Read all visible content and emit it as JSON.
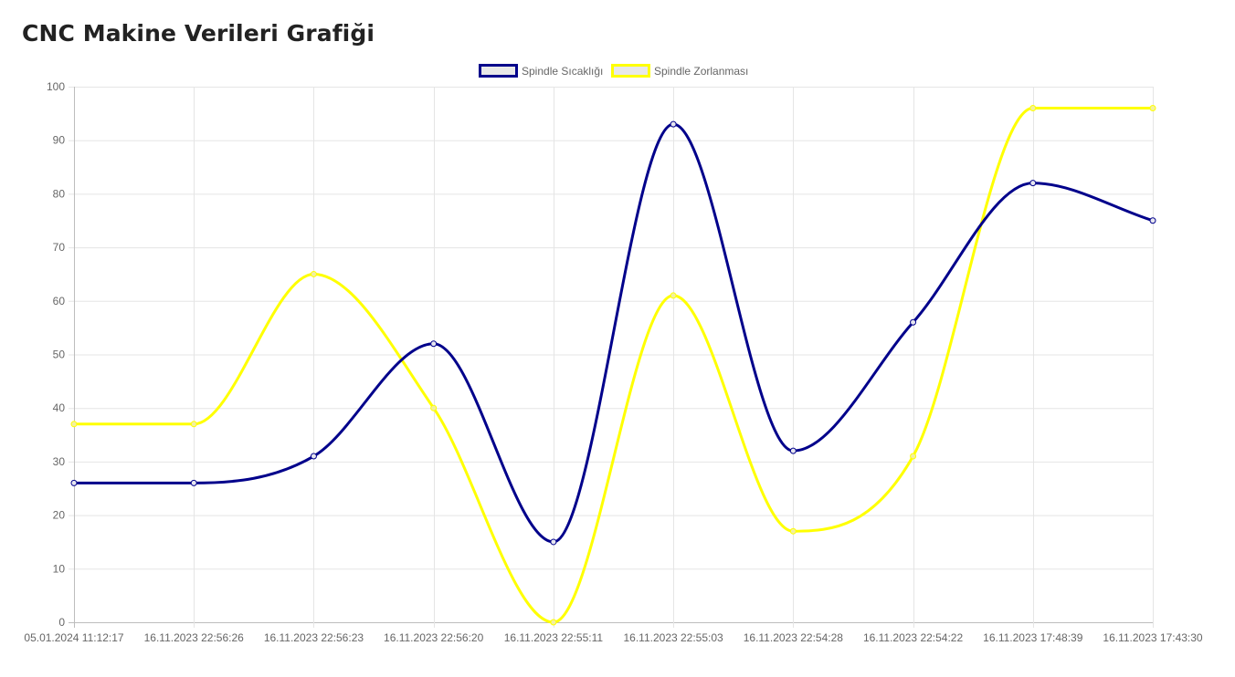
{
  "page_title": "CNC Makine Verileri Grafiği",
  "chart_data": {
    "type": "line",
    "title": "",
    "xlabel": "",
    "ylabel": "",
    "ylim": [
      0,
      100
    ],
    "yticks": [
      0,
      10,
      20,
      30,
      40,
      50,
      60,
      70,
      80,
      90,
      100
    ],
    "grid": true,
    "legend_position": "top",
    "categories": [
      "05.01.2024 11:12:17",
      "16.11.2023 22:56:26",
      "16.11.2023 22:56:23",
      "16.11.2023 22:56:20",
      "16.11.2023 22:55:11",
      "16.11.2023 22:55:03",
      "16.11.2023 22:54:28",
      "16.11.2023 22:54:22",
      "16.11.2023 17:48:39",
      "16.11.2023 17:43:30"
    ],
    "series": [
      {
        "name": "Spindle Sıcaklığı",
        "color": "#00008b",
        "values": [
          26,
          26,
          31,
          52,
          15,
          93,
          32,
          56,
          82,
          75
        ]
      },
      {
        "name": "Spindle Zorlanması",
        "color": "#ffff00",
        "values": [
          37,
          37,
          65,
          40,
          0,
          61,
          17,
          31,
          96,
          96
        ]
      }
    ]
  }
}
